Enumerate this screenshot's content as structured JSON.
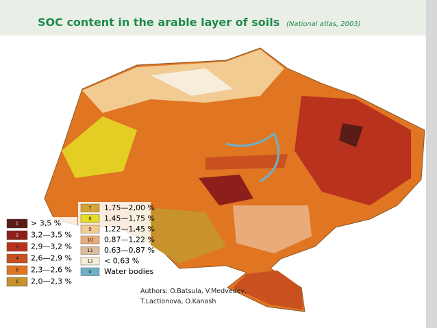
{
  "header": {
    "title": "SOC content in the arable layer of soils",
    "subtitle": "(National atlas, 2003)"
  },
  "legend": {
    "left": [
      {
        "code": "1",
        "label": "> 3,5 %",
        "color": "#5a1c16"
      },
      {
        "code": "2",
        "label": "3,2—3,5 %",
        "color": "#8e1e1a"
      },
      {
        "code": "3",
        "label": "2,9—3,2 %",
        "color": "#b8321e"
      },
      {
        "code": "4",
        "label": "2,6—2,9 %",
        "color": "#c9501f"
      },
      {
        "code": "5",
        "label": "2,3—2,6 %",
        "color": "#e07522"
      },
      {
        "code": "6",
        "label": "2,0—2,3 %",
        "color": "#c8922c"
      }
    ],
    "right": [
      {
        "code": "7",
        "label": "1,75—2,00 %",
        "color": "#d6a432"
      },
      {
        "code": "8",
        "label": "1,45—1,75 %",
        "color": "#e4de24"
      },
      {
        "code": "9",
        "label": "1,22—1,45 %",
        "color": "#f2cb92"
      },
      {
        "code": "10",
        "label": "0,87—1,22 %",
        "color": "#e9ab7a"
      },
      {
        "code": "11",
        "label": "0,63—0,87 %",
        "color": "#dcbc9c"
      },
      {
        "code": "12",
        "label": "< 0,63 %",
        "color": "#f6eedb"
      },
      {
        "code": "0",
        "label": "Water bodies",
        "color": "#6cb2c9"
      }
    ]
  },
  "authors": [
    "Authors: O.Batsula, V.Medvedev,",
    "T.Lactionova, O.Kanash"
  ]
}
